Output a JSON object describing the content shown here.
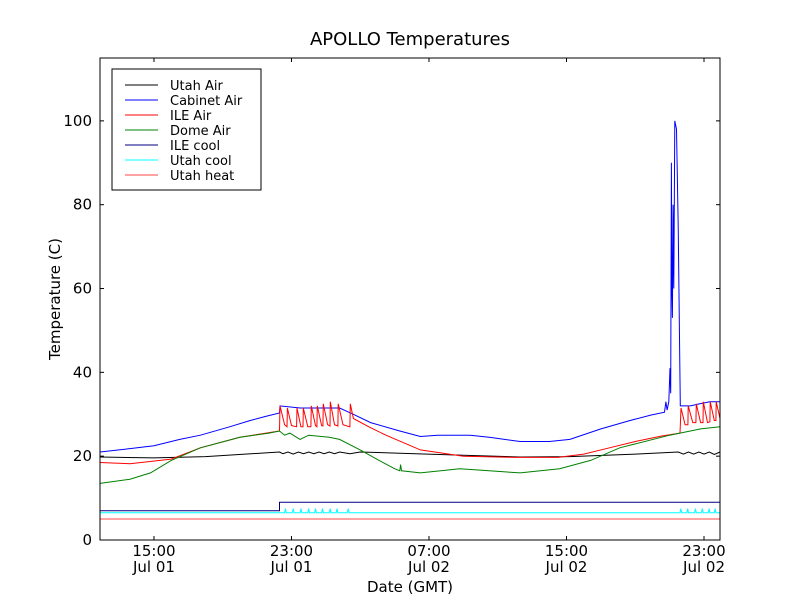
{
  "chart_data": {
    "type": "line",
    "title": "APOLLO Temperatures",
    "xlabel": "Date (GMT)",
    "ylabel": "Temperature (C)",
    "x_units": "hours since Jul 01 00:00 GMT",
    "xlim": [
      11.86,
      47.93
    ],
    "ylim": [
      0,
      115
    ],
    "yticks": [
      0,
      20,
      40,
      60,
      80,
      100
    ],
    "xticks": [
      {
        "value": 15,
        "line1": "15:00",
        "line2": "Jul 01"
      },
      {
        "value": 23,
        "line1": "23:00",
        "line2": "Jul 01"
      },
      {
        "value": 31,
        "line1": "07:00",
        "line2": "Jul 02"
      },
      {
        "value": 39,
        "line1": "15:00",
        "line2": "Jul 02"
      },
      {
        "value": 47,
        "line1": "23:00",
        "line2": "Jul 02"
      }
    ],
    "grid": false,
    "legend_position": "top-left",
    "series": [
      {
        "name": "Utah Air",
        "color": "#000000",
        "points": [
          [
            11.86,
            19.8
          ],
          [
            15,
            19.6
          ],
          [
            18,
            19.9
          ],
          [
            22.3,
            21
          ],
          [
            22.5,
            20.6
          ],
          [
            22.8,
            21
          ],
          [
            23.1,
            20.5
          ],
          [
            23.4,
            21
          ],
          [
            23.7,
            20.6
          ],
          [
            24,
            21
          ],
          [
            24.3,
            20.6
          ],
          [
            24.6,
            21
          ],
          [
            24.9,
            20.6
          ],
          [
            25.2,
            21
          ],
          [
            25.5,
            20.6
          ],
          [
            25.8,
            21
          ],
          [
            26.4,
            20.6
          ],
          [
            27,
            21
          ],
          [
            29.3,
            20.7
          ],
          [
            33,
            20.2
          ],
          [
            36.3,
            19.8
          ],
          [
            39.2,
            19.9
          ],
          [
            43,
            20.5
          ],
          [
            45.5,
            21
          ],
          [
            45.8,
            20.5
          ],
          [
            46.1,
            21
          ],
          [
            46.4,
            20.5
          ],
          [
            46.7,
            21
          ],
          [
            47,
            20.5
          ],
          [
            47.3,
            21
          ],
          [
            47.6,
            20.4
          ],
          [
            47.93,
            21
          ]
        ]
      },
      {
        "name": "Cabinet Air",
        "color": "#0000ff",
        "points": [
          [
            11.86,
            21
          ],
          [
            13.6,
            21.8
          ],
          [
            15,
            22.5
          ],
          [
            16.5,
            24
          ],
          [
            17.7,
            25
          ],
          [
            19.4,
            27
          ],
          [
            20.6,
            28.5
          ],
          [
            21.5,
            29.5
          ],
          [
            22.3,
            30.3
          ],
          [
            22.33,
            32
          ],
          [
            23.5,
            31.5
          ],
          [
            25.8,
            31.5
          ],
          [
            26.6,
            30
          ],
          [
            27.6,
            28
          ],
          [
            29.3,
            26
          ],
          [
            30.5,
            24.7
          ],
          [
            31.5,
            25
          ],
          [
            33.4,
            25
          ],
          [
            34.5,
            24.5
          ],
          [
            36.3,
            23.5
          ],
          [
            38,
            23.5
          ],
          [
            39.2,
            24
          ],
          [
            41,
            26.5
          ],
          [
            42.7,
            28.5
          ],
          [
            43.9,
            29.8
          ],
          [
            44.7,
            30.5
          ],
          [
            44.78,
            33
          ],
          [
            44.85,
            31
          ],
          [
            44.95,
            33
          ],
          [
            45.02,
            41
          ],
          [
            45.06,
            35
          ],
          [
            45.1,
            90
          ],
          [
            45.13,
            60
          ],
          [
            45.16,
            53
          ],
          [
            45.2,
            80
          ],
          [
            45.24,
            60
          ],
          [
            45.3,
            100
          ],
          [
            45.4,
            98
          ],
          [
            45.5,
            75
          ],
          [
            45.62,
            32
          ],
          [
            46.2,
            32
          ],
          [
            46.76,
            32.5
          ],
          [
            47.34,
            33
          ],
          [
            47.93,
            33
          ]
        ]
      },
      {
        "name": "ILE Air",
        "color": "#ff0000",
        "points": [
          [
            11.86,
            18.5
          ],
          [
            13.6,
            18.2
          ],
          [
            16,
            19.3
          ],
          [
            17.7,
            22
          ],
          [
            20,
            24.5
          ],
          [
            22.3,
            26
          ],
          [
            22.33,
            32
          ],
          [
            22.6,
            27.5
          ],
          [
            22.74,
            27
          ],
          [
            22.76,
            31.5
          ],
          [
            23.0,
            27.3
          ],
          [
            23.3,
            27
          ],
          [
            23.32,
            31.5
          ],
          [
            23.55,
            27
          ],
          [
            23.67,
            27
          ],
          [
            23.69,
            31.5
          ],
          [
            23.95,
            27
          ],
          [
            24.13,
            27
          ],
          [
            24.15,
            32
          ],
          [
            24.4,
            27.3
          ],
          [
            24.48,
            27
          ],
          [
            24.5,
            32
          ],
          [
            24.75,
            27.3
          ],
          [
            24.83,
            27.2
          ],
          [
            24.85,
            32.5
          ],
          [
            25.1,
            27.5
          ],
          [
            25.24,
            27.2
          ],
          [
            25.26,
            33
          ],
          [
            25.5,
            27.5
          ],
          [
            25.7,
            27.2
          ],
          [
            25.72,
            32.5
          ],
          [
            26.0,
            27.5
          ],
          [
            26.4,
            27
          ],
          [
            26.42,
            32.5
          ],
          [
            26.6,
            29
          ],
          [
            27.5,
            27
          ],
          [
            28.5,
            25
          ],
          [
            30.5,
            21.5
          ],
          [
            33,
            20
          ],
          [
            36,
            19.7
          ],
          [
            38.5,
            19.7
          ],
          [
            40,
            20.5
          ],
          [
            41.5,
            22
          ],
          [
            43,
            23.5
          ],
          [
            44.5,
            24.8
          ],
          [
            45.6,
            25.5
          ],
          [
            45.66,
            31.5
          ],
          [
            45.9,
            27.5
          ],
          [
            46.06,
            27.5
          ],
          [
            46.08,
            32
          ],
          [
            46.35,
            28
          ],
          [
            46.53,
            28
          ],
          [
            46.55,
            32.5
          ],
          [
            46.8,
            28
          ],
          [
            46.94,
            28
          ],
          [
            46.96,
            33
          ],
          [
            47.2,
            28
          ],
          [
            47.34,
            28.2
          ],
          [
            47.36,
            33
          ],
          [
            47.6,
            28.5
          ],
          [
            47.69,
            28.5
          ],
          [
            47.71,
            33
          ],
          [
            47.93,
            29
          ]
        ]
      },
      {
        "name": "Dome Air",
        "color": "#008000",
        "points": [
          [
            11.86,
            13.5
          ],
          [
            13.6,
            14.5
          ],
          [
            14.8,
            16
          ],
          [
            16,
            19
          ],
          [
            17.7,
            22
          ],
          [
            20,
            24.5
          ],
          [
            21.7,
            25.5
          ],
          [
            22.3,
            26
          ],
          [
            22.6,
            25
          ],
          [
            22.9,
            25.5
          ],
          [
            23.5,
            24
          ],
          [
            24,
            25
          ],
          [
            25.2,
            24.5
          ],
          [
            25.8,
            24
          ],
          [
            27,
            21.5
          ],
          [
            28.1,
            19
          ],
          [
            29,
            17
          ],
          [
            29.3,
            16.5
          ],
          [
            29.35,
            18
          ],
          [
            29.4,
            16.5
          ],
          [
            30.5,
            16
          ],
          [
            32.8,
            17
          ],
          [
            34.5,
            16.5
          ],
          [
            36.3,
            16
          ],
          [
            38.6,
            17
          ],
          [
            40.4,
            19
          ],
          [
            42.1,
            22
          ],
          [
            45,
            25
          ],
          [
            45.6,
            25.5
          ],
          [
            46.8,
            26.5
          ],
          [
            47.93,
            27
          ]
        ]
      },
      {
        "name": "ILE cool",
        "color": "#000080",
        "points": [
          [
            11.86,
            7
          ],
          [
            22.3,
            7
          ],
          [
            22.3,
            9
          ],
          [
            47.93,
            9
          ]
        ]
      },
      {
        "name": "Utah cool",
        "color": "#00ffff",
        "points": [
          [
            11.86,
            6.5
          ],
          [
            22.6,
            6.5
          ],
          [
            22.65,
            7.5
          ],
          [
            22.7,
            6.5
          ],
          [
            23.05,
            6.5
          ],
          [
            23.1,
            7.5
          ],
          [
            23.15,
            6.5
          ],
          [
            23.5,
            6.5
          ],
          [
            23.55,
            7.5
          ],
          [
            23.6,
            6.5
          ],
          [
            23.95,
            6.5
          ],
          [
            24.0,
            7.5
          ],
          [
            24.05,
            6.5
          ],
          [
            24.35,
            6.5
          ],
          [
            24.4,
            7.5
          ],
          [
            24.45,
            6.5
          ],
          [
            24.75,
            6.5
          ],
          [
            24.8,
            7.5
          ],
          [
            24.85,
            6.5
          ],
          [
            25.2,
            6.5
          ],
          [
            25.25,
            7.5
          ],
          [
            25.3,
            6.5
          ],
          [
            25.6,
            6.5
          ],
          [
            25.65,
            7.5
          ],
          [
            25.7,
            6.5
          ],
          [
            26.25,
            6.5
          ],
          [
            26.3,
            7.5
          ],
          [
            26.35,
            6.5
          ],
          [
            45.6,
            6.5
          ],
          [
            45.65,
            7.5
          ],
          [
            45.7,
            6.5
          ],
          [
            46.0,
            6.5
          ],
          [
            46.05,
            7.5
          ],
          [
            46.1,
            6.5
          ],
          [
            46.45,
            6.5
          ],
          [
            46.5,
            7.5
          ],
          [
            46.55,
            6.5
          ],
          [
            46.85,
            6.5
          ],
          [
            46.9,
            7.5
          ],
          [
            46.95,
            6.5
          ],
          [
            47.25,
            6.5
          ],
          [
            47.3,
            7.5
          ],
          [
            47.35,
            6.5
          ],
          [
            47.6,
            6.5
          ],
          [
            47.65,
            7.5
          ],
          [
            47.7,
            6.5
          ],
          [
            47.93,
            6.5
          ]
        ]
      },
      {
        "name": "Utah heat",
        "color": "#ff4444",
        "points": [
          [
            11.86,
            5
          ],
          [
            47.93,
            5
          ]
        ]
      }
    ]
  }
}
